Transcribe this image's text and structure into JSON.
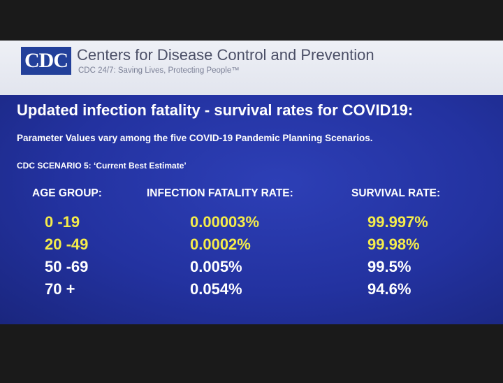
{
  "header": {
    "logo_text": "CDC",
    "org_name": "Centers for Disease Control and Prevention",
    "tagline": "CDC 24/7: Saving Lives, Protecting People™"
  },
  "slide": {
    "title": "Updated infection fatality - survival rates for COVID19:",
    "subtitle": "Parameter Values vary among the five COVID-19 Pandemic Planning Scenarios.",
    "scenario": "CDC SCENARIO 5: ‘Current Best Estimate’"
  },
  "table": {
    "headers": [
      "AGE GROUP:",
      "INFECTION FATALITY RATE:",
      "SURVIVAL RATE:"
    ],
    "rows": [
      {
        "age": "0 -19",
        "ifr": "0.00003%",
        "survival": "99.997%",
        "color": "#f5ec4a"
      },
      {
        "age": "20 -49",
        "ifr": "0.0002%",
        "survival": "99.98%",
        "color": "#f5ec4a"
      },
      {
        "age": "50 -69",
        "ifr": "0.005%",
        "survival": "99.5%",
        "color": "#ffffff"
      },
      {
        "age": "70 +",
        "ifr": "0.054%",
        "survival": "94.6%",
        "color": "#ffffff"
      }
    ]
  }
}
